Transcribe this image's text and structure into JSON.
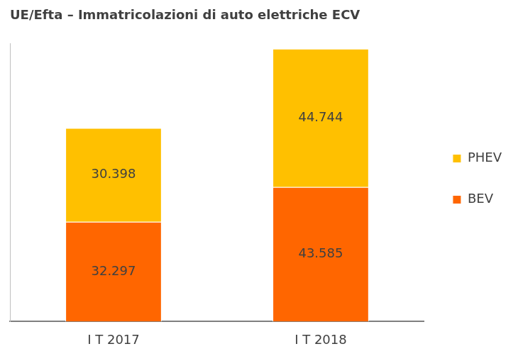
{
  "chart_data": {
    "type": "bar",
    "title": "UE/Efta – Immatricolazioni di auto elettriche ECV",
    "categories": [
      "I T 2017",
      "I T 2018"
    ],
    "series": [
      {
        "name": "BEV",
        "color": "#ff6600",
        "values": [
          32297,
          43585
        ],
        "value_labels": [
          "32.297",
          "43.585"
        ]
      },
      {
        "name": "PHEV",
        "color": "#ffc000",
        "values": [
          30398,
          44744
        ],
        "value_labels": [
          "30.398",
          "44.744"
        ]
      }
    ],
    "stacked": true,
    "data_labels": true,
    "ylim": [
      0,
      90000
    ],
    "tick_labels": "x",
    "grid": false,
    "legend": "right"
  }
}
